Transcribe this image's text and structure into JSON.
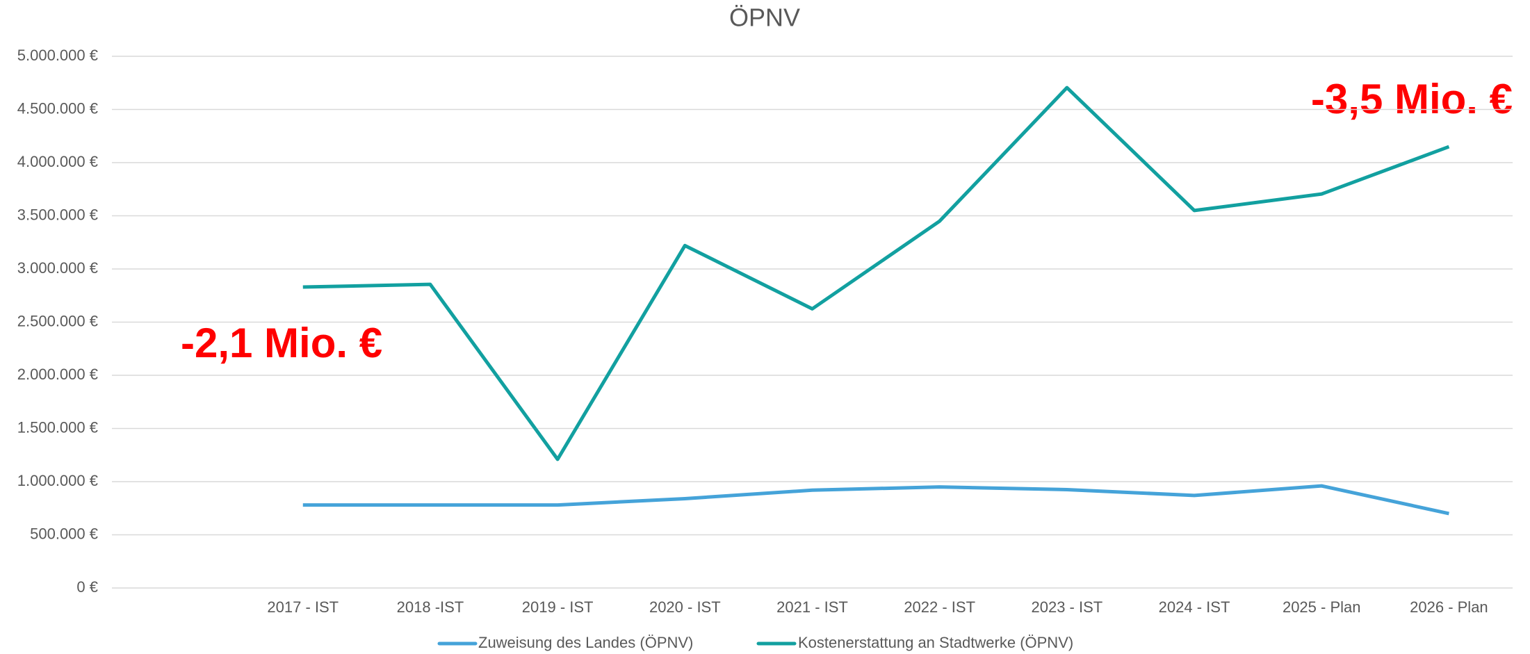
{
  "chart_data": {
    "type": "line",
    "title": "ÖPNV",
    "categories": [
      null,
      "2017 - IST",
      "2018 -IST",
      "2019 - IST",
      "2020 - IST",
      "2021 - IST",
      "2022 - IST",
      "2023 - IST",
      "2024 - IST",
      "2025 - Plan",
      "2026 - Plan"
    ],
    "series": [
      {
        "name": "Zuweisung des Landes (ÖPNV)",
        "color": "#45a3d9",
        "values": [
          null,
          780000,
          780000,
          780000,
          840000,
          920000,
          950000,
          925000,
          870000,
          960000,
          700000
        ]
      },
      {
        "name": "Kostenerstattung an Stadtwerke (ÖPNV)",
        "color": "#12a0a0",
        "values": [
          null,
          2830000,
          2855000,
          1210000,
          3220000,
          2625000,
          3450000,
          4705000,
          3550000,
          3705000,
          4150000
        ]
      }
    ],
    "ylim": [
      0,
      5000000
    ],
    "yticks": [
      {
        "value": 0,
        "label": "0 €"
      },
      {
        "value": 500000,
        "label": "500.000 €"
      },
      {
        "value": 1000000,
        "label": "1.000.000 €"
      },
      {
        "value": 1500000,
        "label": "1.500.000 €"
      },
      {
        "value": 2000000,
        "label": "2.000.000 €"
      },
      {
        "value": 2500000,
        "label": "2.500.000 €"
      },
      {
        "value": 3000000,
        "label": "3.000.000 €"
      },
      {
        "value": 3500000,
        "label": "3.500.000 €"
      },
      {
        "value": 4000000,
        "label": "4.000.000 €"
      },
      {
        "value": 4500000,
        "label": "4.500.000 €"
      },
      {
        "value": 5000000,
        "label": "5.000.000 €"
      }
    ],
    "grid": true,
    "legend": "bottom",
    "annotations": [
      "-2,1 Mio. €",
      "-3,5 Mio. €"
    ]
  }
}
